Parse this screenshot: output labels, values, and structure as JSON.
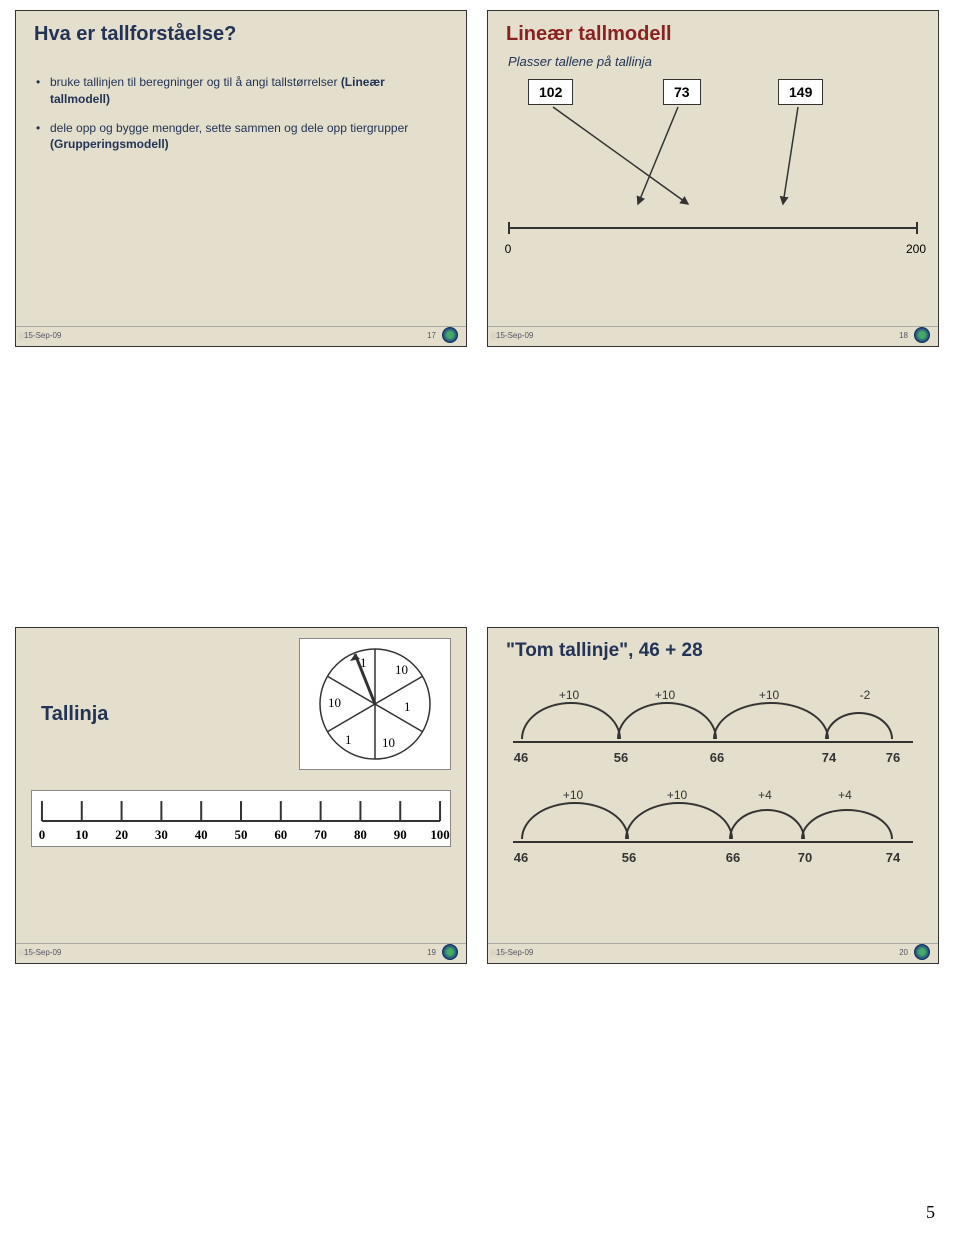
{
  "page_number": "5",
  "footer_date": "15-Sep-09",
  "slides": {
    "s17": {
      "title": "Hva er tallforståelse?",
      "bullet1_pre": "bruke tallinjen til beregninger og til å angi tallstørrelser ",
      "bullet1_bold": "(Lineær tallmodell)",
      "bullet2_pre": "dele opp og bygge mengder, sette sammen og dele opp tiergrupper ",
      "bullet2_bold": "(Grupperingsmodell)",
      "footer_num": "17"
    },
    "s18": {
      "title": "Lineær tallmodell",
      "subtitle": "Plasser tallene på tallinja",
      "boxes": {
        "b1": "102",
        "b2": "73",
        "b3": "149"
      },
      "axis": {
        "start": "0",
        "end": "200"
      },
      "footer_num": "18"
    },
    "s19": {
      "title": "Tallinja",
      "spinner_values": [
        "1",
        "10",
        "10",
        "1",
        "1",
        "10"
      ],
      "ruler_ticks": [
        "0",
        "10",
        "20",
        "30",
        "40",
        "50",
        "60",
        "70",
        "80",
        "90",
        "100"
      ],
      "footer_num": "19"
    },
    "s20": {
      "title": "\"Tom tallinje\", 46 + 28",
      "line1": {
        "jumps": [
          "+10",
          "+10",
          "+10",
          "-2"
        ],
        "marks": [
          "46",
          "56",
          "66",
          "74",
          "76"
        ]
      },
      "line2": {
        "jumps": [
          "+10",
          "+10",
          "+4",
          "+4"
        ],
        "marks": [
          "46",
          "56",
          "66",
          "70",
          "74"
        ]
      },
      "footer_num": "20"
    }
  },
  "colors": {
    "slide_bg": "#e4dfcc",
    "title_navy": "#223355",
    "title_red": "#8b2020"
  }
}
